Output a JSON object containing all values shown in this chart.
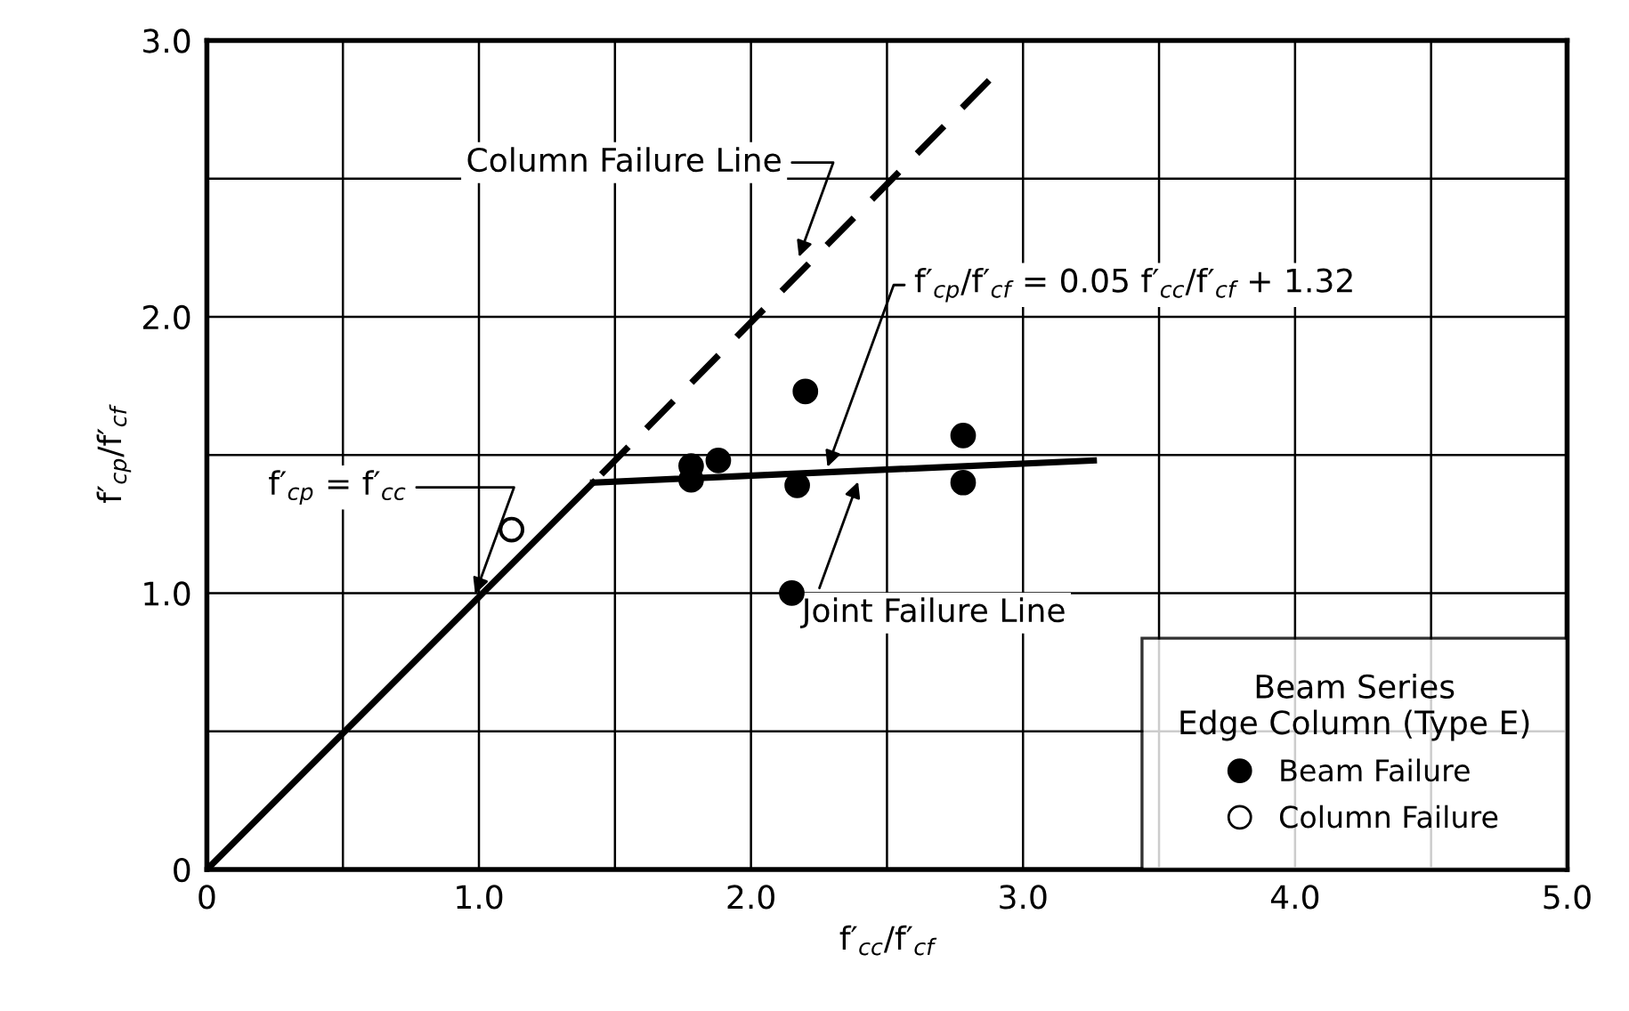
{
  "chart_data": {
    "type": "scatter",
    "xlabel": "f′$_{cc}$/f′$_{cf}$",
    "ylabel": "f′$_{cp}$/f′$_{cf}$",
    "legend_title": "Beam Series\nEdge Column (Type E)",
    "xlim": [
      0,
      5
    ],
    "ylim": [
      0,
      3
    ],
    "xticks": [
      0,
      {
        "value": 0.5,
        "label": null
      },
      {
        "value": 1,
        "label": "1.0"
      },
      {
        "value": 1.5,
        "label": null
      },
      {
        "value": 2,
        "label": "2.0"
      },
      {
        "value": 2.5,
        "label": null
      },
      {
        "value": 3,
        "label": "3.0"
      },
      {
        "value": 3.5,
        "label": null
      },
      {
        "value": 4,
        "label": "4.0"
      },
      {
        "value": 4.5,
        "label": null
      },
      {
        "value": 5,
        "label": "5.0"
      }
    ],
    "yticks": [
      0,
      {
        "value": 0.5,
        "label": null
      },
      {
        "value": 1,
        "label": "1.0"
      },
      {
        "value": 1.5,
        "label": null
      },
      {
        "value": 2,
        "label": "2.0"
      },
      {
        "value": 2.5,
        "label": null
      },
      {
        "value": 3,
        "label": "3.0"
      }
    ],
    "grid": true,
    "legend": "bottom right",
    "series": [
      {
        "type": "line",
        "color": "#000000",
        "line_style": "solid",
        "marker": "none",
        "x": [
          0,
          1.42
        ],
        "values": [
          0,
          1.4
        ]
      },
      {
        "type": "line",
        "color": "#000000",
        "line_style": "solid",
        "marker": "none",
        "x": [
          1.42,
          3.26
        ],
        "values": [
          1.4,
          1.48
        ]
      },
      {
        "type": "line",
        "color": "#000000",
        "line_style": "dashed",
        "marker": "none",
        "x": [
          1.45,
          2.9
        ],
        "values": [
          1.43,
          2.88
        ]
      },
      {
        "name": "Beam Failure",
        "color": "#000000",
        "marker": "circle",
        "x": [
          1.78,
          1.78,
          1.88,
          2.15,
          2.17,
          2.2,
          2.78,
          2.78
        ],
        "values": [
          1.46,
          1.41,
          1.48,
          1.0,
          1.39,
          1.73,
          1.57,
          1.4
        ]
      },
      {
        "name": "Column Failure",
        "color": "#ffffff",
        "marker": "circle",
        "x": [
          1.12
        ],
        "values": [
          1.23
        ]
      }
    ],
    "annotations": [
      {
        "text": "Column Failure Line",
        "x": 2.17,
        "y": 2.2
      },
      "f′$_{cp}$/f′$_{cf}$ = 0.05 f′$_{cc}$/f′$_{cf}$ + 1.32",
      {
        "text": "Joint Failure Line",
        "x": 2.4,
        "y": 1.42
      },
      {
        "text": "f′$_{cp}$ = f′$_{cc}$",
        "x": 0.98,
        "y": 0.98
      }
    ]
  }
}
